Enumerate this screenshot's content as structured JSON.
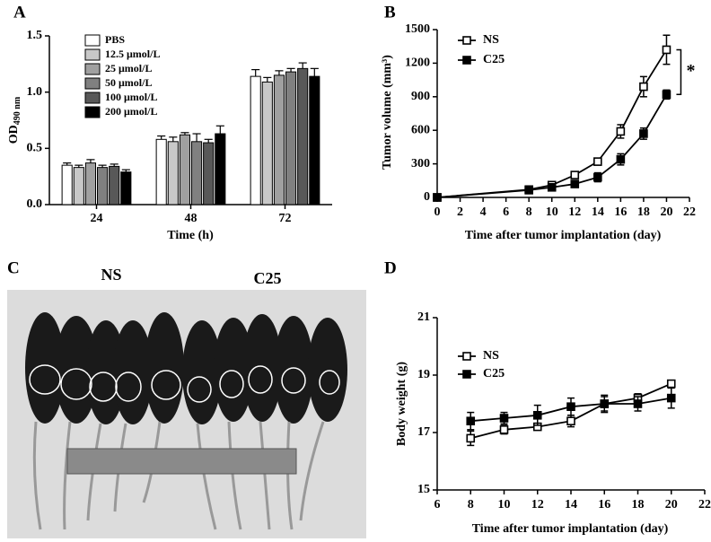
{
  "chart_data": [
    {
      "type": "bar",
      "panel_label": "A",
      "ylabel": "OD",
      "ylabel_subscript": "490 nm",
      "xlabel": "Time (h)",
      "categories": [
        "24",
        "48",
        "72"
      ],
      "series": [
        {
          "name": "PBS",
          "color": "#ffffff",
          "values": [
            0.35,
            0.58,
            1.14
          ],
          "errors": [
            0.02,
            0.03,
            0.06
          ]
        },
        {
          "name": "12.5 μmol/L",
          "color": "#c8c8c8",
          "values": [
            0.33,
            0.56,
            1.09
          ],
          "errors": [
            0.02,
            0.04,
            0.04
          ]
        },
        {
          "name": "25 μmol/L",
          "color": "#a0a0a0",
          "values": [
            0.37,
            0.62,
            1.15
          ],
          "errors": [
            0.03,
            0.02,
            0.04
          ]
        },
        {
          "name": "50 μmol/L",
          "color": "#808080",
          "values": [
            0.33,
            0.56,
            1.18
          ],
          "errors": [
            0.02,
            0.07,
            0.03
          ]
        },
        {
          "name": "100 μmol/L",
          "color": "#585858",
          "values": [
            0.34,
            0.55,
            1.21
          ],
          "errors": [
            0.02,
            0.03,
            0.05
          ]
        },
        {
          "name": "200 μmol/L",
          "color": "#000000",
          "values": [
            0.29,
            0.63,
            1.14
          ],
          "errors": [
            0.02,
            0.07,
            0.07
          ]
        }
      ],
      "ylim": [
        0,
        1.5
      ],
      "yticks": [
        {
          "value": 0,
          "label": "0.0"
        },
        {
          "value": 0.5,
          "label": "0.5"
        },
        {
          "value": 1,
          "label": "1.0"
        },
        {
          "value": 1.5,
          "label": "1.5"
        }
      ],
      "grid": false
    },
    {
      "type": "line",
      "panel_label": "B",
      "ylabel": "Tumor volume (mm³)",
      "xlabel": "Time after tumor implantation (day)",
      "annotation": "*",
      "x": [
        0,
        8,
        10,
        12,
        14,
        16,
        18,
        20
      ],
      "series": [
        {
          "name": "NS",
          "color": "#000000",
          "marker": "open-square",
          "values": [
            0,
            70,
            110,
            200,
            320,
            590,
            990,
            1320
          ],
          "errors": [
            0,
            20,
            25,
            30,
            30,
            60,
            90,
            130
          ]
        },
        {
          "name": "C25",
          "color": "#000000",
          "marker": "filled-square",
          "values": [
            0,
            65,
            90,
            120,
            180,
            340,
            570,
            920
          ],
          "errors": [
            0,
            15,
            20,
            25,
            40,
            50,
            50,
            40
          ]
        }
      ],
      "xlim": [
        0,
        22
      ],
      "xticks": [
        0,
        2,
        4,
        6,
        8,
        10,
        12,
        14,
        16,
        18,
        20,
        22
      ],
      "ylim": [
        0,
        1500
      ],
      "yticks": [
        0,
        300,
        600,
        900,
        1200,
        1500
      ],
      "grid": false
    },
    {
      "type": "line",
      "panel_label": "D",
      "ylabel": "Body weight (g)",
      "xlabel": "Time after tumor implantation (day)",
      "x": [
        8,
        10,
        12,
        14,
        16,
        18,
        20
      ],
      "series": [
        {
          "name": "NS",
          "color": "#000000",
          "marker": "open-square",
          "values": [
            16.8,
            17.1,
            17.2,
            17.4,
            18.0,
            18.2,
            18.7
          ],
          "errors": [
            0.25,
            0.15,
            0.1,
            0.2,
            0.25,
            0.15,
            0.1
          ]
        },
        {
          "name": "C25",
          "color": "#000000",
          "marker": "filled-square",
          "values": [
            17.4,
            17.5,
            17.6,
            17.9,
            18.0,
            18.0,
            18.2
          ],
          "errors": [
            0.3,
            0.2,
            0.35,
            0.3,
            0.3,
            0.25,
            0.35
          ]
        }
      ],
      "xlim": [
        6,
        22
      ],
      "xticks": [
        6,
        8,
        10,
        12,
        14,
        16,
        18,
        20,
        22
      ],
      "ylim": [
        15,
        21
      ],
      "yticks": [
        15,
        17,
        19,
        21
      ],
      "grid": false
    }
  ],
  "photo": {
    "panel_label": "C",
    "groups": [
      "NS",
      "C25"
    ]
  }
}
